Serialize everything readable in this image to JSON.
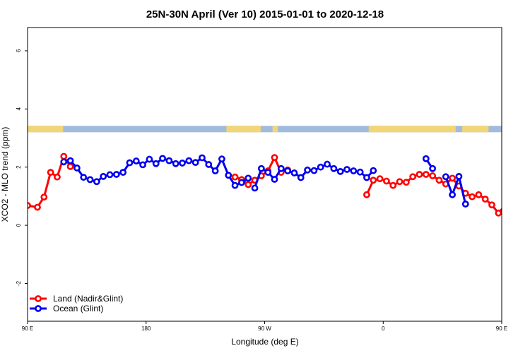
{
  "chart_data": {
    "type": "line",
    "title": "25N-30N April (Ver 10)   2015-01-01 to 2020-12-18",
    "xlabel": "Longitude (deg E)",
    "ylabel": "XCO2 - MLO trend (ppm)",
    "xlim": [
      90,
      450
    ],
    "ylim": [
      -3.3,
      6.8
    ],
    "x_ticks": [
      {
        "value": 90,
        "label": "90 E"
      },
      {
        "value": 180,
        "label": "180"
      },
      {
        "value": 270,
        "label": "90 W"
      },
      {
        "value": 360,
        "label": "0"
      },
      {
        "value": 450,
        "label": "90 E"
      },
      {
        "value": 540,
        "label": "180"
      }
    ],
    "y_ticks": [
      {
        "value": -2,
        "label": "-2"
      },
      {
        "value": 0,
        "label": "0"
      },
      {
        "value": 2,
        "label": "2"
      },
      {
        "value": 4,
        "label": "4"
      },
      {
        "value": 6,
        "label": "6"
      }
    ],
    "grid": false,
    "legend_position": "bottom-left",
    "land_strip": {
      "y_range": [
        3.2,
        3.42
      ],
      "ocean_color": "#a2bbdd",
      "land_color": "#f2d675",
      "land_segments": [
        [
          90,
          117
        ],
        [
          241,
          267
        ],
        [
          276,
          280
        ],
        [
          349,
          415
        ],
        [
          420,
          440
        ]
      ]
    },
    "series": [
      {
        "name": "Land (Nadir&Glint)",
        "color": "#ff0000",
        "segments": [
          {
            "x": [
              90,
              97.5,
              102.5,
              107.5,
              112.5,
              117.5,
              122.5
            ],
            "y": [
              0.68,
              0.62,
              0.97,
              1.82,
              1.66,
              2.37,
              2.02
            ]
          },
          {
            "x": [
              247.5,
              252.5,
              257.5,
              262.5,
              267.5,
              272.5,
              277.5,
              282.5,
              287.5
            ],
            "y": [
              1.66,
              1.57,
              1.4,
              1.55,
              1.7,
              1.87,
              2.33,
              1.82,
              1.9
            ]
          },
          {
            "x": [
              347.5,
              352.5,
              357.5,
              362.5,
              367.5,
              372.5,
              377.5,
              382.5,
              387.5,
              392.5,
              397.5,
              402.5,
              407.5,
              412.5,
              417.5,
              422.5,
              427.5,
              432.5,
              437.5,
              442.5,
              447.5,
              452.5,
              457.5,
              462.5,
              467.5,
              472.5,
              477.5,
              482.5
            ],
            "y": [
              1.05,
              1.55,
              1.6,
              1.52,
              1.37,
              1.5,
              1.48,
              1.67,
              1.75,
              1.75,
              1.7,
              1.55,
              1.42,
              1.62,
              1.35,
              1.1,
              0.98,
              1.05,
              0.9,
              0.7,
              0.42,
              0.68,
              0.63,
              0.95,
              1.82,
              1.65,
              2.37,
              2.02
            ]
          }
        ]
      },
      {
        "name": "Ocean (Glint)",
        "color": "#0000ee",
        "segments": [
          {
            "x": [
              117.5,
              122.5,
              127.5,
              132.5,
              137.5,
              142.5,
              147.5,
              152.5,
              157.5,
              162.5,
              167.5,
              172.5,
              177.5,
              182.5,
              187.5,
              192.5,
              197.5,
              202.5,
              207.5,
              212.5,
              217.5,
              222.5,
              227.5,
              232.5,
              237.5,
              242.5,
              247.5,
              252.5,
              257.5
            ],
            "y": [
              2.18,
              2.22,
              1.97,
              1.65,
              1.57,
              1.5,
              1.68,
              1.74,
              1.75,
              1.82,
              2.15,
              2.21,
              2.08,
              2.27,
              2.12,
              2.3,
              2.22,
              2.12,
              2.14,
              2.22,
              2.16,
              2.32,
              2.09,
              1.87,
              2.28,
              1.72,
              1.37,
              1.47,
              1.62
            ]
          },
          {
            "x": [
              262.5,
              267.5,
              272.5,
              277.5,
              282.5,
              287.5,
              292.5,
              297.5,
              302.5,
              307.5,
              312.5,
              317.5,
              322.5,
              327.5,
              332.5,
              337.5,
              342.5,
              347.5,
              352.5
            ],
            "y": [
              1.28,
              1.95,
              1.82,
              1.58,
              1.95,
              1.87,
              1.8,
              1.64,
              1.9,
              1.88,
              2.0,
              2.1,
              1.95,
              1.85,
              1.92,
              1.87,
              1.83,
              1.64,
              1.88
            ]
          },
          {
            "x": [
              392.5,
              397.5
            ],
            "y": [
              2.29,
              1.95
            ]
          },
          {
            "x": [
              407.5,
              412.5,
              417.5,
              422.5
            ],
            "y": [
              1.67,
              1.05,
              1.68,
              0.73
            ]
          },
          {
            "x": [
              477.5,
              482.5,
              487.5,
              492.5,
              497.5,
              502.5,
              507.5,
              512.5,
              517.5,
              522.5,
              527.5,
              532.5,
              537.5,
              542.5
            ],
            "y": [
              2.18,
              2.22,
              1.97,
              1.65,
              1.57,
              1.5,
              1.68,
              1.74,
              1.75,
              1.82,
              2.15,
              2.21,
              2.08,
              2.27
            ]
          }
        ]
      }
    ]
  }
}
